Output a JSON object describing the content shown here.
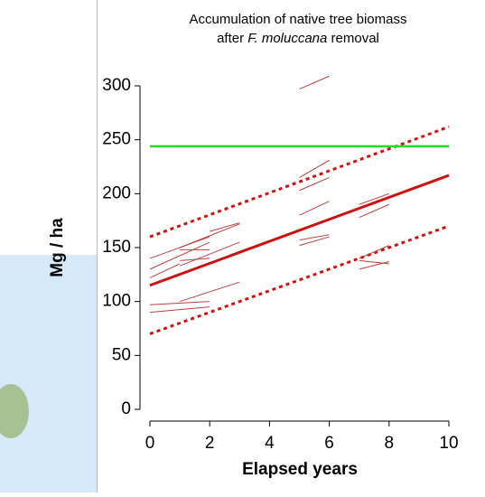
{
  "chart_data": {
    "type": "line",
    "title": [
      "Accumulation of native tree biomass",
      [
        "after ",
        "F. moluccana",
        " removal"
      ]
    ],
    "x_label": "Elapsed years",
    "y_label": "Mg / ha",
    "xlim": [
      0,
      10
    ],
    "xticks": [
      0,
      2,
      4,
      6,
      8,
      10
    ],
    "ylim": [
      0,
      300
    ],
    "yticks": [
      0,
      50,
      100,
      150,
      200,
      250,
      300
    ],
    "series": [
      {
        "color": "#cc1111",
        "style": "solid",
        "width": 3,
        "x": [
          0,
          10
        ],
        "values": [
          115,
          217
        ]
      },
      {
        "color": "#cc1111",
        "style": "dashed",
        "width": 3,
        "x": [
          0,
          10
        ],
        "values": [
          160,
          262
        ]
      },
      {
        "color": "#cc1111",
        "style": "dashed",
        "width": 3,
        "x": [
          0,
          10
        ],
        "values": [
          70,
          170
        ]
      },
      {
        "color": "#22dd22",
        "style": "solid",
        "width": 2.5,
        "x": [
          0,
          10
        ],
        "values": [
          244,
          244
        ]
      },
      {
        "color": "#b84040",
        "style": "solid",
        "width": 1,
        "x": [
          5,
          6
        ],
        "values": [
          297,
          309
        ]
      },
      {
        "color": "#b84040",
        "style": "solid",
        "width": 1,
        "x": [
          5,
          6
        ],
        "values": [
          215,
          231
        ]
      },
      {
        "color": "#b84040",
        "style": "solid",
        "width": 1,
        "x": [
          5,
          6
        ],
        "values": [
          203,
          215
        ]
      },
      {
        "color": "#b84040",
        "style": "solid",
        "width": 1,
        "x": [
          5,
          6
        ],
        "values": [
          180,
          193
        ]
      },
      {
        "color": "#b84040",
        "style": "solid",
        "width": 1,
        "x": [
          5,
          6
        ],
        "values": [
          152,
          160
        ]
      },
      {
        "color": "#b84040",
        "style": "solid",
        "width": 1,
        "x": [
          5,
          6
        ],
        "values": [
          157,
          162
        ]
      },
      {
        "color": "#b84040",
        "style": "solid",
        "width": 1,
        "x": [
          7,
          8
        ],
        "values": [
          190,
          200
        ]
      },
      {
        "color": "#b84040",
        "style": "solid",
        "width": 1,
        "x": [
          7,
          8
        ],
        "values": [
          178,
          190
        ]
      },
      {
        "color": "#b84040",
        "style": "solid",
        "width": 1,
        "x": [
          7,
          8
        ],
        "values": [
          140,
          152
        ]
      },
      {
        "color": "#b84040",
        "style": "solid",
        "width": 1,
        "x": [
          7,
          8
        ],
        "values": [
          130,
          137
        ]
      },
      {
        "color": "#b84040",
        "style": "solid",
        "width": 1,
        "x": [
          7,
          8
        ],
        "values": [
          138,
          135
        ]
      },
      {
        "color": "#b84040",
        "style": "solid",
        "width": 1,
        "x": [
          0,
          2
        ],
        "values": [
          130,
          155
        ]
      },
      {
        "color": "#b84040",
        "style": "solid",
        "width": 1,
        "x": [
          0,
          1
        ],
        "values": [
          122,
          135
        ]
      },
      {
        "color": "#b84040",
        "style": "solid",
        "width": 1,
        "x": [
          0,
          2
        ],
        "values": [
          140,
          160
        ]
      },
      {
        "color": "#b84040",
        "style": "solid",
        "width": 1,
        "x": [
          1,
          2
        ],
        "values": [
          148,
          148
        ]
      },
      {
        "color": "#b84040",
        "style": "solid",
        "width": 1,
        "x": [
          1,
          3
        ],
        "values": [
          150,
          172
        ]
      },
      {
        "color": "#b84040",
        "style": "solid",
        "width": 1,
        "x": [
          1,
          3
        ],
        "values": [
          133,
          155
        ]
      },
      {
        "color": "#b84040",
        "style": "solid",
        "width": 1,
        "x": [
          1,
          2
        ],
        "values": [
          138,
          140
        ]
      },
      {
        "color": "#b84040",
        "style": "solid",
        "width": 1,
        "x": [
          0,
          2
        ],
        "values": [
          90,
          95
        ]
      },
      {
        "color": "#b84040",
        "style": "solid",
        "width": 1,
        "x": [
          0,
          2
        ],
        "values": [
          97,
          100
        ]
      },
      {
        "color": "#b84040",
        "style": "solid",
        "width": 1,
        "x": [
          1,
          3
        ],
        "values": [
          100,
          118
        ]
      },
      {
        "color": "#b84040",
        "style": "solid",
        "width": 1,
        "x": [
          2,
          3
        ],
        "values": [
          165,
          173
        ]
      }
    ]
  }
}
